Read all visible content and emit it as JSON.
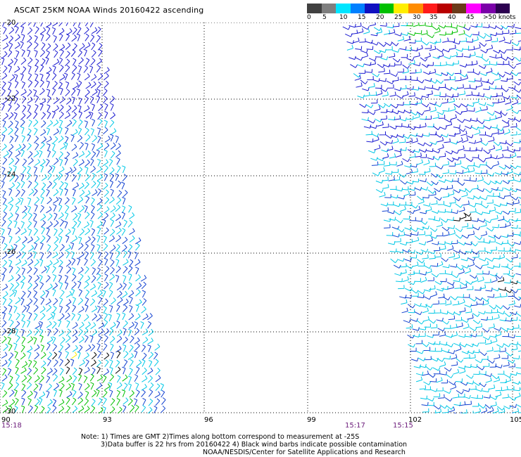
{
  "title": "ASCAT 25KM NOAA Winds 20160422 ascending",
  "scale": {
    "labels": [
      "0",
      "5",
      "10",
      "15",
      "20",
      "25",
      "30",
      "35",
      "40",
      "45",
      ">50 knots"
    ],
    "colors": [
      "#404040",
      "#7f7f7f",
      "#00e5ff",
      "#0080ff",
      "#1010c0",
      "#00c000",
      "#ffee00",
      "#ff8c00",
      "#ff1a1a",
      "#b80000",
      "#6b3a1a",
      "#ff00ff",
      "#7a00a8",
      "#2c0050"
    ]
  },
  "lat_labels": [
    "-20",
    "-22",
    "-24",
    "-26",
    "-28",
    "-30"
  ],
  "lon_labels": [
    "90",
    "93",
    "96",
    "99",
    "102",
    "105"
  ],
  "times": [
    "15:18",
    "15:17",
    "15:15"
  ],
  "notes": {
    "line1": "Note: 1) Times are GMT 2)Times along bottom correspond to measurement at -25S",
    "line2": "3)Data buffer is 22 hrs from 20160422 4) Black wind barbs indicate possible contamination",
    "line3": "NOAA/NESDIS/Center for Satellite Applications and Research"
  },
  "map": {
    "lat_range": [
      -30,
      -20
    ],
    "lon_range": [
      90,
      105
    ],
    "grid": true
  }
}
